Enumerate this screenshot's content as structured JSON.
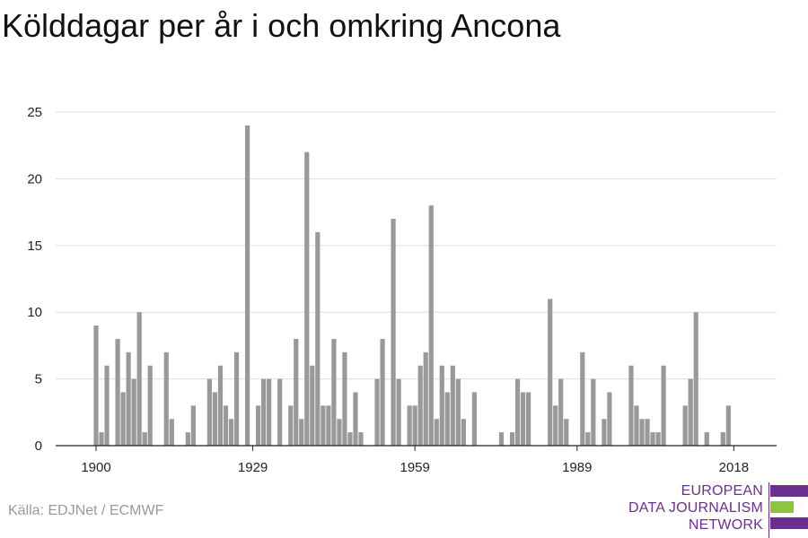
{
  "title": "Kölddagar per år i och omkring Ancona",
  "source": "Källa: EDJNet / ECMWF",
  "logo": {
    "lines": [
      "EUROPEAN",
      "DATA JOURNALISM",
      "NETWORK"
    ],
    "colors": {
      "purple": "#6b2f8f",
      "green": "#8cc63f"
    }
  },
  "chart_data": {
    "type": "bar",
    "title": "Kölddagar per år i och omkring Ancona",
    "xlabel": "",
    "ylabel": "",
    "ylim": [
      0,
      25
    ],
    "yticks": [
      0,
      5,
      10,
      15,
      20,
      25
    ],
    "xticks": [
      1900,
      1929,
      1959,
      1989,
      2018
    ],
    "xlim": [
      1900,
      2018
    ],
    "grid": true,
    "legend": "none",
    "bar_color": "#999999",
    "categories": [
      1900,
      1901,
      1902,
      1903,
      1904,
      1905,
      1906,
      1907,
      1908,
      1909,
      1910,
      1911,
      1912,
      1913,
      1914,
      1915,
      1916,
      1917,
      1918,
      1919,
      1920,
      1921,
      1922,
      1923,
      1924,
      1925,
      1926,
      1927,
      1928,
      1929,
      1930,
      1931,
      1932,
      1933,
      1934,
      1935,
      1936,
      1937,
      1938,
      1939,
      1940,
      1941,
      1942,
      1943,
      1944,
      1945,
      1946,
      1947,
      1948,
      1949,
      1950,
      1951,
      1952,
      1953,
      1954,
      1955,
      1956,
      1957,
      1958,
      1959,
      1960,
      1961,
      1962,
      1963,
      1964,
      1965,
      1966,
      1967,
      1968,
      1969,
      1970,
      1971,
      1972,
      1973,
      1974,
      1975,
      1976,
      1977,
      1978,
      1979,
      1980,
      1981,
      1982,
      1983,
      1984,
      1985,
      1986,
      1987,
      1988,
      1989,
      1990,
      1991,
      1992,
      1993,
      1994,
      1995,
      1996,
      1997,
      1998,
      1999,
      2000,
      2001,
      2002,
      2003,
      2004,
      2005,
      2006,
      2007,
      2008,
      2009,
      2010,
      2011,
      2012,
      2013,
      2014,
      2015,
      2016,
      2017,
      2018
    ],
    "values": [
      9,
      1,
      6,
      0,
      8,
      4,
      7,
      5,
      10,
      1,
      6,
      0,
      0,
      7,
      2,
      0,
      0,
      1,
      3,
      0,
      0,
      5,
      4,
      6,
      3,
      2,
      7,
      0,
      24,
      0,
      3,
      5,
      5,
      0,
      5,
      0,
      3,
      8,
      2,
      22,
      6,
      16,
      3,
      3,
      8,
      2,
      7,
      1,
      4,
      1,
      0,
      0,
      5,
      8,
      0,
      17,
      5,
      0,
      3,
      3,
      6,
      7,
      18,
      2,
      6,
      4,
      6,
      5,
      2,
      0,
      4,
      0,
      0,
      0,
      0,
      1,
      0,
      1,
      5,
      4,
      4,
      0,
      0,
      0,
      11,
      3,
      5,
      2,
      0,
      0,
      7,
      1,
      5,
      0,
      2,
      4,
      0,
      0,
      0,
      6,
      3,
      2,
      2,
      1,
      1,
      6,
      0,
      0,
      0,
      3,
      5,
      10,
      0,
      1,
      0,
      0,
      1,
      3,
      0
    ]
  }
}
